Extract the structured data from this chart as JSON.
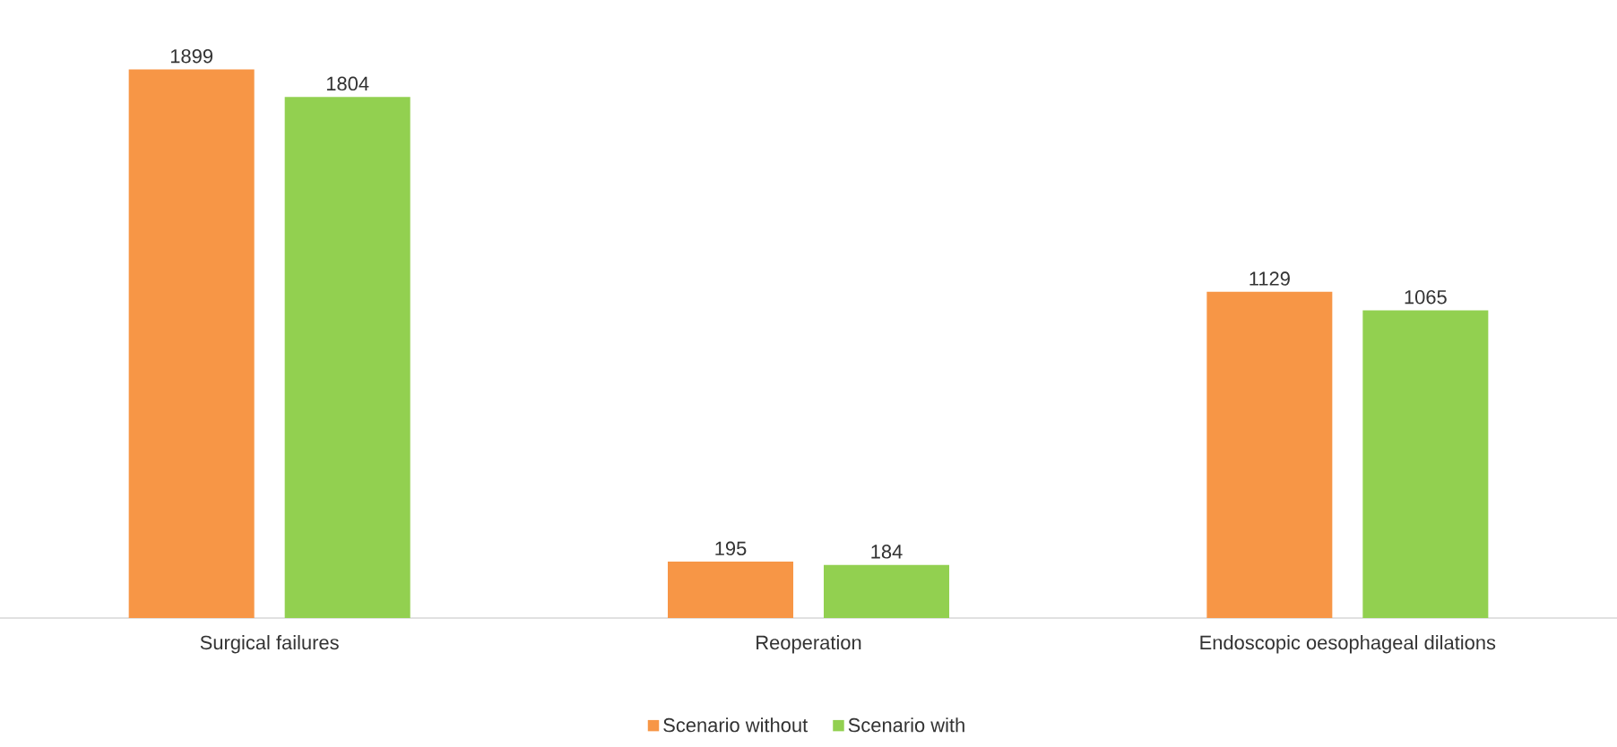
{
  "chart_data": {
    "type": "bar",
    "categories": [
      "Surgical failures",
      "Reoperation",
      "Endoscopic oesophageal dilations"
    ],
    "series": [
      {
        "name": "Scenario without",
        "color": "#f79646",
        "values": [
          1899,
          195,
          1129
        ]
      },
      {
        "name": "Scenario with",
        "color": "#92d050",
        "values": [
          1804,
          184,
          1065
        ]
      }
    ],
    "data_labels": true,
    "legend": "bottom"
  }
}
